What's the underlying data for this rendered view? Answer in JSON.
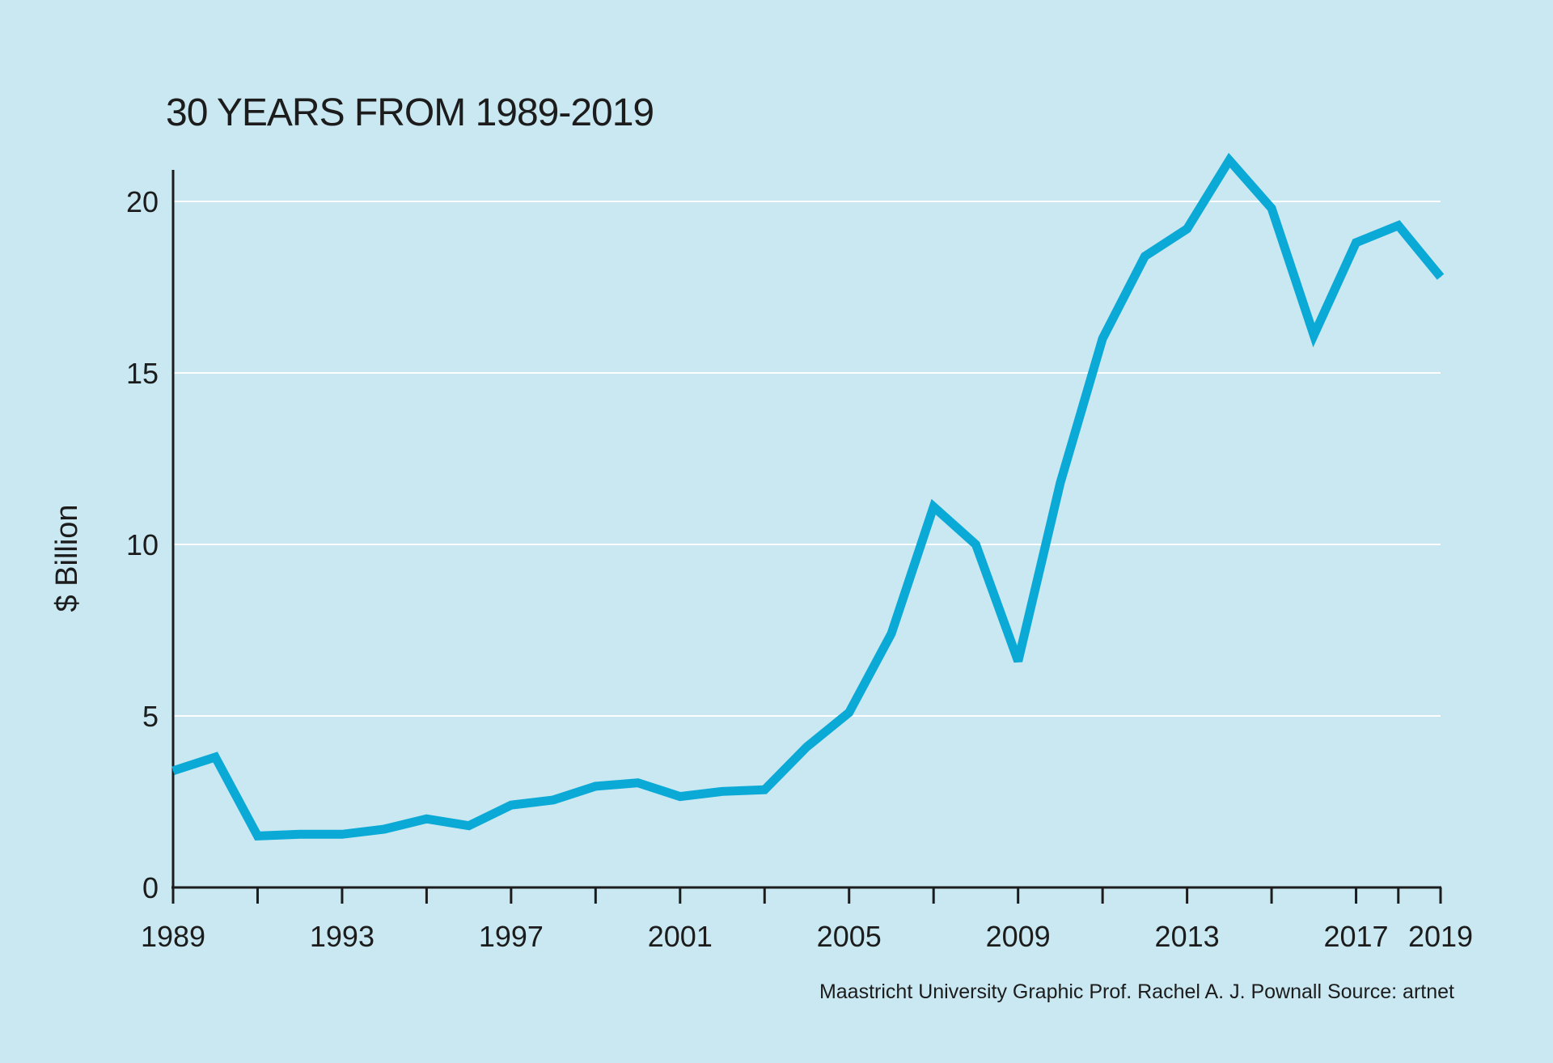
{
  "chart_data": {
    "type": "line",
    "title": "30 YEARS FROM 1989-2019",
    "xlabel": "",
    "ylabel": "$ Billion",
    "credit": "Maastricht University Graphic Prof. Rachel A. J. Pownall Source: artnet",
    "xlim": [
      1989,
      2019
    ],
    "ylim": [
      0,
      21
    ],
    "grid": true,
    "x_tick_labels": [
      "1989",
      "1993",
      "1997",
      "2001",
      "2005",
      "2009",
      "2013",
      "2017",
      "2019"
    ],
    "x_tick_values": [
      1989,
      1993,
      1997,
      2001,
      2005,
      2009,
      2013,
      2017,
      2019
    ],
    "x_minor_ticks": [
      1991,
      1995,
      1999,
      2003,
      2007,
      2011,
      2015,
      2018
    ],
    "y_tick_labels": [
      "0",
      "5",
      "10",
      "15",
      "20"
    ],
    "y_tick_values": [
      0,
      5,
      10,
      15,
      20
    ],
    "series": [
      {
        "name": "$ Billion",
        "color": "#0aa9d6",
        "x": [
          1989,
          1990,
          1991,
          1992,
          1993,
          1994,
          1995,
          1996,
          1997,
          1998,
          1999,
          2000,
          2001,
          2002,
          2003,
          2004,
          2005,
          2006,
          2007,
          2008,
          2009,
          2010,
          2011,
          2012,
          2013,
          2014,
          2015,
          2016,
          2017,
          2018,
          2019
        ],
        "values": [
          3.4,
          3.8,
          1.5,
          1.55,
          1.55,
          1.7,
          2.0,
          1.8,
          2.4,
          2.55,
          2.95,
          3.05,
          2.65,
          2.8,
          2.85,
          4.1,
          5.1,
          7.4,
          11.1,
          10.0,
          6.6,
          11.8,
          16.0,
          18.4,
          19.2,
          21.2,
          19.8,
          16.1,
          18.8,
          19.3,
          17.8
        ]
      }
    ]
  },
  "colors": {
    "background": "#c9e8f2",
    "line": "#0aa9d6",
    "axis": "#1c1c1c",
    "grid": "#ffffff"
  }
}
